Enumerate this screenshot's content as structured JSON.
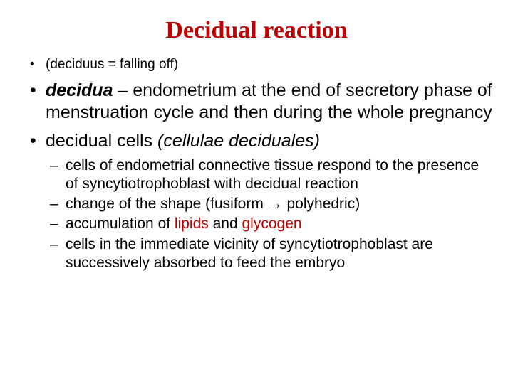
{
  "title": {
    "text": "Decidual reaction",
    "color": "#c00000",
    "fontsize": 34,
    "font_family": "Times New Roman"
  },
  "body_fontsize": {
    "small": 19,
    "main": 25,
    "sub": 21
  },
  "colors": {
    "text": "#000000",
    "accent": "#c00000",
    "background": "#ffffff"
  },
  "etymology": "(deciduus = falling off)",
  "bullets": [
    {
      "term": "decidua",
      "rest": " – endometrium at the end of secretory phase of menstruation cycle and then during the whole pregnancy"
    },
    {
      "plain": "decidual cells ",
      "italic": "(cellulae deciduales)",
      "sub": [
        {
          "segments": [
            {
              "t": "cells of endometrial connective tissue respond to the presence of syncytiotrophoblast with decidual reaction"
            }
          ]
        },
        {
          "segments": [
            {
              "t": "change of the shape (fusiform → polyhedric)"
            }
          ]
        },
        {
          "segments": [
            {
              "t": "accumulation of "
            },
            {
              "t": "lipids",
              "color": "#c00000"
            },
            {
              "t": " and "
            },
            {
              "t": "glycogen",
              "color": "#c00000"
            }
          ]
        },
        {
          "segments": [
            {
              "t": "cells in the immediate vicinity of syncytiotrophoblast are successively absorbed to feed the embryo"
            }
          ]
        }
      ]
    }
  ]
}
